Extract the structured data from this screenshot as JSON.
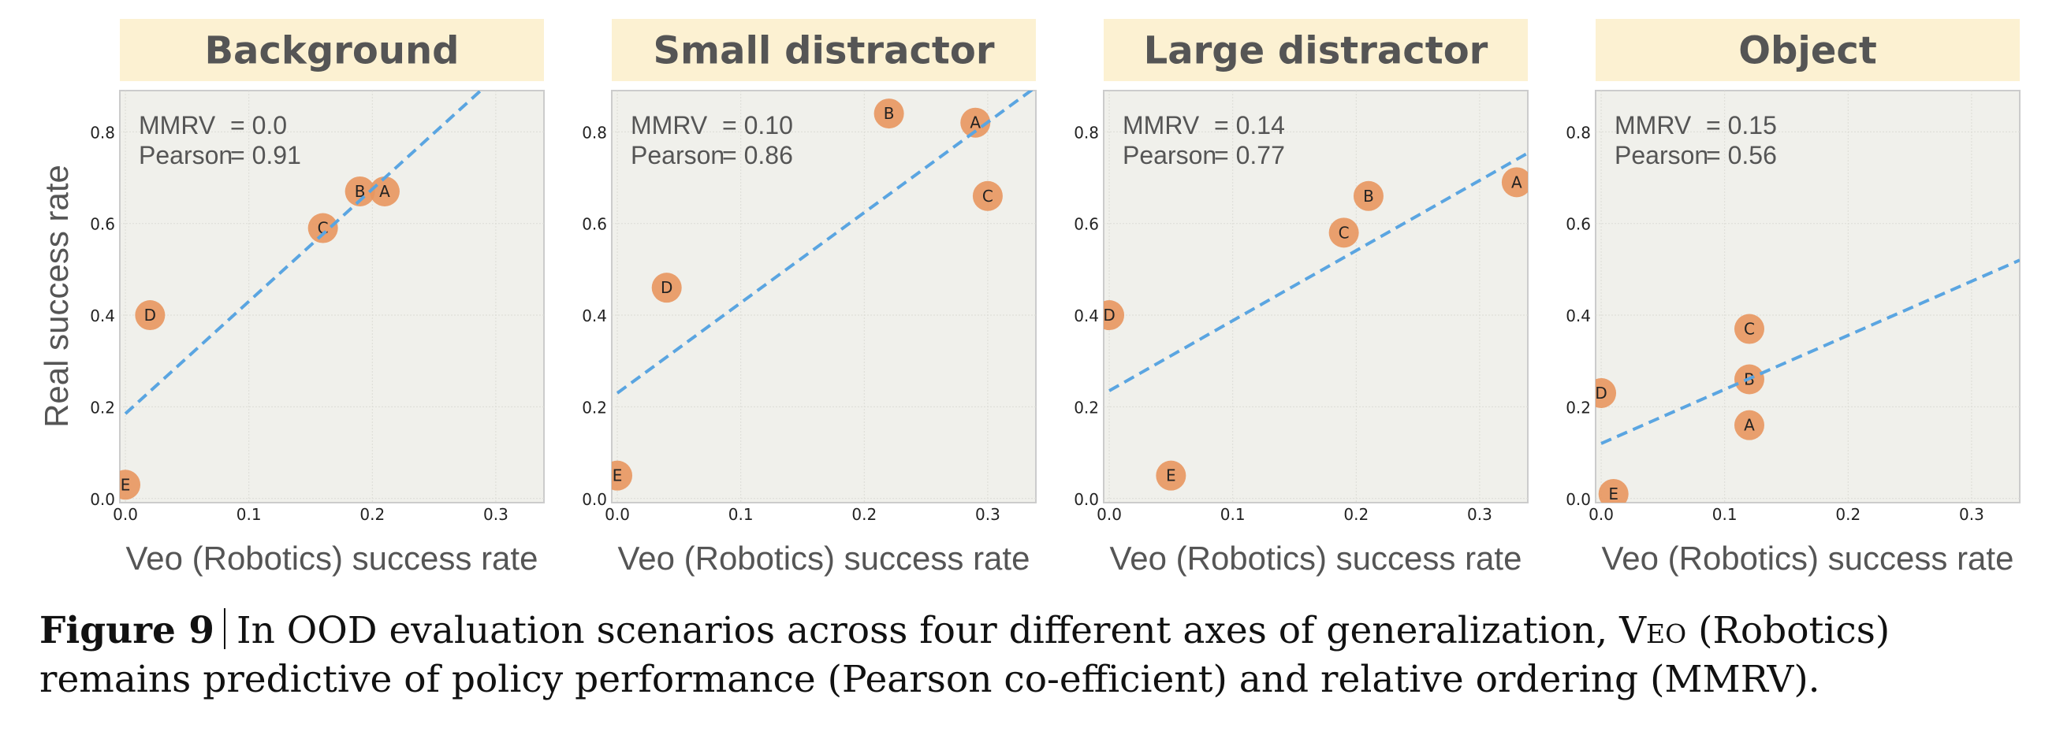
{
  "figure": {
    "ylabel_shared": "Real success rate",
    "caption": {
      "label": "Figure 9",
      "text_before_sc": "In OOD evaluation scenarios across four different axes of generalization, ",
      "small_caps": "Veo",
      "text_after_sc": " (Robotics) remains predictive of policy performance (Pearson co-efficient) and relative ordering (MMRV)."
    },
    "colors": {
      "title_band": "#fcf1d2",
      "axes_bg": "#f0f0eb",
      "axes_border": "#cccccc",
      "point_fill": "#e8965f",
      "fit_line": "#5aa5e1",
      "text_dark": "#555555"
    }
  },
  "chart_data": [
    {
      "type": "scatter",
      "title": "Background",
      "xlabel": "Veo (Robotics) success rate",
      "ylabel": "Real success rate",
      "xlim": [
        -0.0045,
        0.339
      ],
      "ylim": [
        -0.009,
        0.89
      ],
      "xticks": [
        0.0,
        0.1,
        0.2,
        0.3
      ],
      "xtick_labels": [
        "0.0",
        "0.1",
        "0.2",
        "0.3"
      ],
      "yticks": [
        0.0,
        0.2,
        0.4,
        0.6,
        0.8
      ],
      "ytick_labels": [
        "0.0",
        "0.2",
        "0.4",
        "0.6",
        "0.8"
      ],
      "grid": true,
      "annotation": {
        "mmrv_label": "MMRV",
        "mmrv_value": "= 0.0",
        "pearson_label": "Pearson",
        "pearson_value": "= 0.91"
      },
      "points": [
        {
          "label": "A",
          "x": 0.21,
          "y": 0.67
        },
        {
          "label": "B",
          "x": 0.19,
          "y": 0.67
        },
        {
          "label": "C",
          "x": 0.16,
          "y": 0.59
        },
        {
          "label": "D",
          "x": 0.02,
          "y": 0.4
        },
        {
          "label": "E",
          "x": 0.0,
          "y": 0.03
        }
      ],
      "fit_line": {
        "intercept": 0.185,
        "slope": 2.45
      }
    },
    {
      "type": "scatter",
      "title": "Small distractor",
      "xlabel": "Veo (Robotics) success rate",
      "ylabel": "",
      "xlim": [
        -0.0045,
        0.339
      ],
      "ylim": [
        -0.009,
        0.89
      ],
      "xticks": [
        0.0,
        0.1,
        0.2,
        0.3
      ],
      "xtick_labels": [
        "0.0",
        "0.1",
        "0.2",
        "0.3"
      ],
      "yticks": [
        0.0,
        0.2,
        0.4,
        0.6,
        0.8
      ],
      "ytick_labels": [
        "0.0",
        "0.2",
        "0.4",
        "0.6",
        "0.8"
      ],
      "grid": true,
      "annotation": {
        "mmrv_label": "MMRV",
        "mmrv_value": "= 0.10",
        "pearson_label": "Pearson",
        "pearson_value": "= 0.86"
      },
      "points": [
        {
          "label": "A",
          "x": 0.29,
          "y": 0.82
        },
        {
          "label": "B",
          "x": 0.22,
          "y": 0.84
        },
        {
          "label": "C",
          "x": 0.3,
          "y": 0.66
        },
        {
          "label": "D",
          "x": 0.04,
          "y": 0.46
        },
        {
          "label": "E",
          "x": 0.0,
          "y": 0.05
        }
      ],
      "fit_line": {
        "intercept": 0.23,
        "slope": 1.97
      }
    },
    {
      "type": "scatter",
      "title": "Large distractor",
      "xlabel": "Veo (Robotics) success rate",
      "ylabel": "",
      "xlim": [
        -0.0045,
        0.339
      ],
      "ylim": [
        -0.009,
        0.89
      ],
      "xticks": [
        0.0,
        0.1,
        0.2,
        0.3
      ],
      "xtick_labels": [
        "0.0",
        "0.1",
        "0.2",
        "0.3"
      ],
      "yticks": [
        0.0,
        0.2,
        0.4,
        0.6,
        0.8
      ],
      "ytick_labels": [
        "0.0",
        "0.2",
        "0.4",
        "0.6",
        "0.8"
      ],
      "grid": true,
      "annotation": {
        "mmrv_label": "MMRV",
        "mmrv_value": "= 0.14",
        "pearson_label": "Pearson",
        "pearson_value": "= 0.77"
      },
      "points": [
        {
          "label": "A",
          "x": 0.33,
          "y": 0.69
        },
        {
          "label": "B",
          "x": 0.21,
          "y": 0.66
        },
        {
          "label": "C",
          "x": 0.19,
          "y": 0.58
        },
        {
          "label": "D",
          "x": 0.0,
          "y": 0.4
        },
        {
          "label": "E",
          "x": 0.05,
          "y": 0.05
        }
      ],
      "fit_line": {
        "intercept": 0.235,
        "slope": 1.53
      }
    },
    {
      "type": "scatter",
      "title": "Object",
      "xlabel": "Veo (Robotics) success rate",
      "ylabel": "",
      "xlim": [
        -0.0045,
        0.339
      ],
      "ylim": [
        -0.009,
        0.89
      ],
      "xticks": [
        0.0,
        0.1,
        0.2,
        0.3
      ],
      "xtick_labels": [
        "0.0",
        "0.1",
        "0.2",
        "0.3"
      ],
      "yticks": [
        0.0,
        0.2,
        0.4,
        0.6,
        0.8
      ],
      "ytick_labels": [
        "0.0",
        "0.2",
        "0.4",
        "0.6",
        "0.8"
      ],
      "grid": true,
      "annotation": {
        "mmrv_label": "MMRV",
        "mmrv_value": "= 0.15",
        "pearson_label": "Pearson",
        "pearson_value": "= 0.56"
      },
      "points": [
        {
          "label": "A",
          "x": 0.12,
          "y": 0.16
        },
        {
          "label": "B",
          "x": 0.12,
          "y": 0.26
        },
        {
          "label": "C",
          "x": 0.12,
          "y": 0.37
        },
        {
          "label": "D",
          "x": 0.0,
          "y": 0.23
        },
        {
          "label": "E",
          "x": 0.01,
          "y": 0.01
        }
      ],
      "fit_line": {
        "intercept": 0.12,
        "slope": 1.18
      }
    }
  ]
}
